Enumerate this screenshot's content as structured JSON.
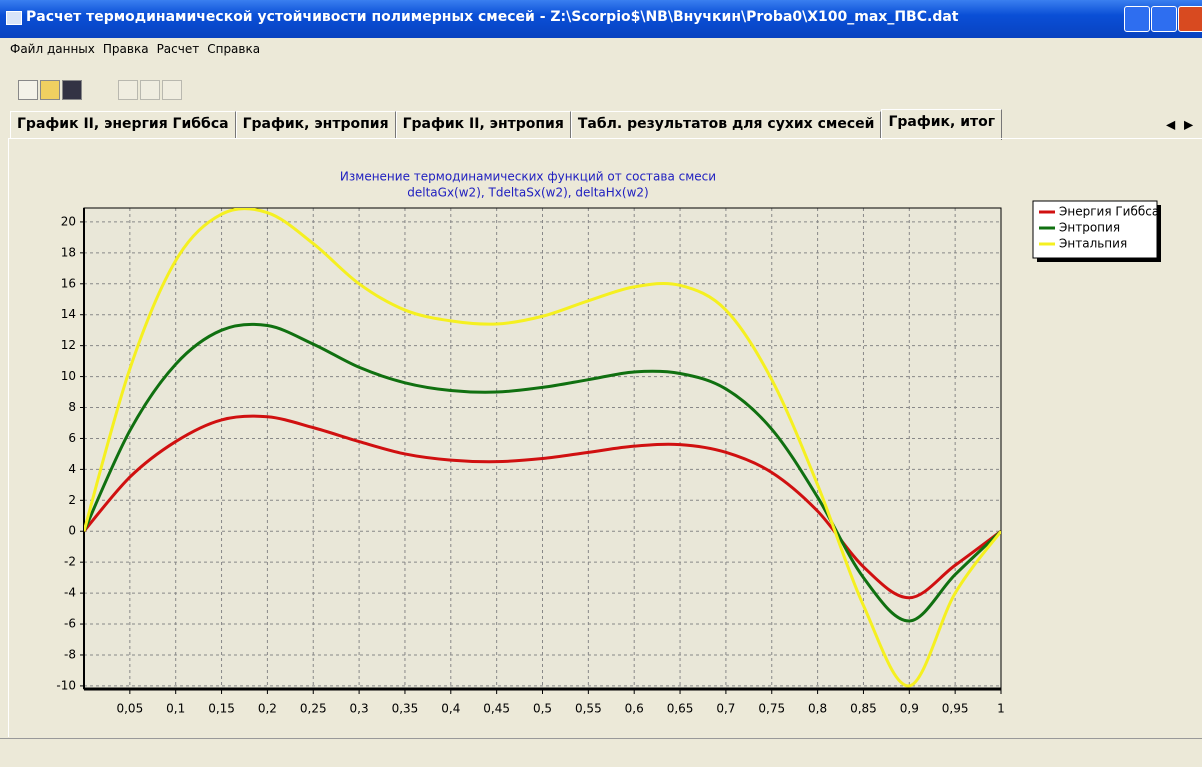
{
  "window": {
    "title": "Расчет термодинамической устойчивости полимерных смесей - Z:\\Scorpio$\\NB\\Внучкин\\Proba0\\X100_max_ПВС.dat"
  },
  "menu": [
    "Файл данных",
    "Правка",
    "Расчет",
    "Справка"
  ],
  "tabs": [
    "График II, энергия Гиббса",
    "График, энтропия",
    "График II, энтропия",
    "Табл. результатов для сухих смесей",
    "График, итог"
  ],
  "active_tab": 4,
  "chart_data": {
    "type": "line",
    "title": "Изменение термодинамических функций от состава смеси",
    "subtitle": "deltaGx(w2), TdeltaSx(w2), deltaHx(w2)",
    "x": [
      0,
      0.05,
      0.1,
      0.15,
      0.2,
      0.25,
      0.3,
      0.35,
      0.4,
      0.45,
      0.5,
      0.55,
      0.6,
      0.65,
      0.7,
      0.75,
      0.8,
      0.85,
      0.9,
      0.95,
      1
    ],
    "series": [
      {
        "name": "Энергия Гиббса",
        "color": "#d01010",
        "values": [
          0,
          3.5,
          5.8,
          7.2,
          7.4,
          6.7,
          5.8,
          5.0,
          4.6,
          4.5,
          4.7,
          5.1,
          5.5,
          5.6,
          5.1,
          3.8,
          1.3,
          -2.3,
          -4.3,
          -2.2,
          0
        ]
      },
      {
        "name": "Энтропия",
        "color": "#107010",
        "values": [
          0,
          6.5,
          10.8,
          13.0,
          13.3,
          12.1,
          10.6,
          9.6,
          9.1,
          9.0,
          9.3,
          9.8,
          10.3,
          10.2,
          9.2,
          6.6,
          2.2,
          -3.0,
          -5.8,
          -2.8,
          0
        ]
      },
      {
        "name": "Энтальпия",
        "color": "#f5f020",
        "values": [
          0,
          10.5,
          17.5,
          20.5,
          20.6,
          18.6,
          16.0,
          14.3,
          13.6,
          13.4,
          13.9,
          14.9,
          15.8,
          15.9,
          14.3,
          9.8,
          3.0,
          -4.8,
          -10.0,
          -4.0,
          0
        ]
      }
    ],
    "xlim": [
      0,
      1
    ],
    "ylim": [
      -10.2,
      20.9
    ],
    "xticks": [
      {
        "value": 0.05,
        "label": "0,05"
      },
      {
        "value": 0.1,
        "label": "0,1"
      },
      {
        "value": 0.15,
        "label": "0,15"
      },
      {
        "value": 0.2,
        "label": "0,2"
      },
      {
        "value": 0.25,
        "label": "0,25"
      },
      {
        "value": 0.3,
        "label": "0,3"
      },
      {
        "value": 0.35,
        "label": "0,35"
      },
      {
        "value": 0.4,
        "label": "0,4"
      },
      {
        "value": 0.45,
        "label": "0,45"
      },
      {
        "value": 0.5,
        "label": "0,5"
      },
      {
        "value": 0.55,
        "label": "0,55"
      },
      {
        "value": 0.6,
        "label": "0,6"
      },
      {
        "value": 0.65,
        "label": "0,65"
      },
      {
        "value": 0.7,
        "label": "0,7"
      },
      {
        "value": 0.75,
        "label": "0,75"
      },
      {
        "value": 0.8,
        "label": "0,8"
      },
      {
        "value": 0.85,
        "label": "0,85"
      },
      {
        "value": 0.9,
        "label": "0,9"
      },
      {
        "value": 0.95,
        "label": "0,95"
      },
      1
    ],
    "yticks": [
      -10,
      -8,
      -6,
      -4,
      -2,
      0,
      2,
      4,
      6,
      8,
      10,
      12,
      14,
      16,
      18,
      20
    ],
    "grid": true,
    "legend": "upper right"
  }
}
